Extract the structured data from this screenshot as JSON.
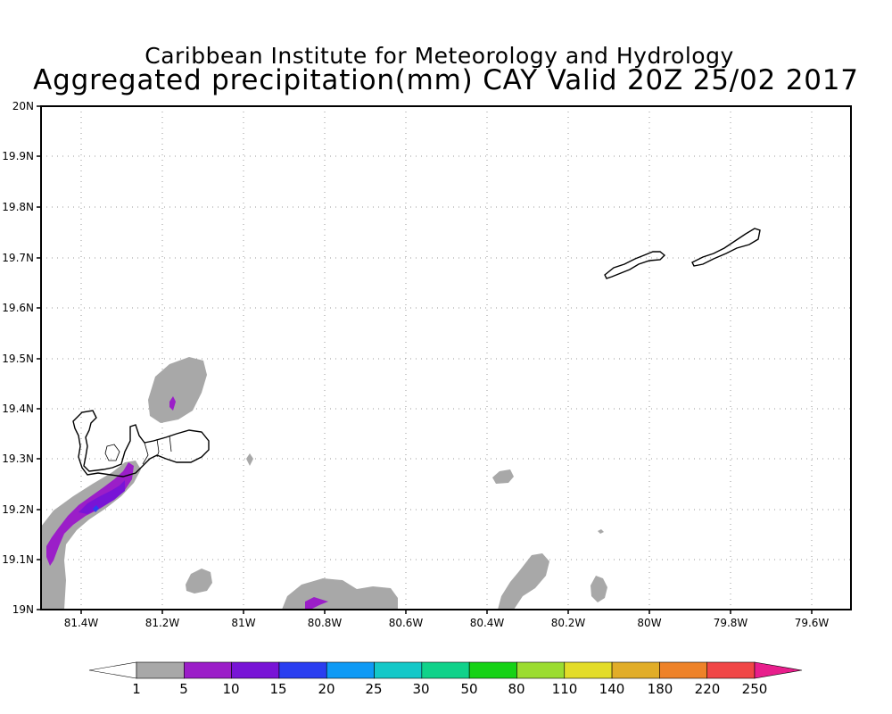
{
  "map": {
    "title": "Caribbean Institute for Meteorology and Hydrology",
    "subtitle": "Aggregated precipitation(mm) CAY Valid 20Z 25/02 2017",
    "lat_labels": [
      "20N",
      "19.9N",
      "19.8N",
      "19.7N",
      "19.6N",
      "19.5N",
      "19.4N",
      "19.3N",
      "19.2N",
      "19.1N",
      "19N"
    ],
    "lon_labels": [
      "81.4W",
      "81.2W",
      "81W",
      "80.8W",
      "80.6W",
      "80.4W",
      "80.2W",
      "80W",
      "79.8W",
      "79.6W"
    ],
    "colors": {
      "land_outline": "#000000",
      "grid": "#9a9a9a"
    }
  },
  "legend": {
    "labels": [
      "1",
      "5",
      "10",
      "15",
      "20",
      "25",
      "30",
      "50",
      "80",
      "110",
      "140",
      "180",
      "220",
      "250"
    ],
    "colors": [
      "#a8a8a8",
      "#9b1ec8",
      "#7814d6",
      "#2a3ef0",
      "#0f9af5",
      "#14c8c8",
      "#10d28a",
      "#16d216",
      "#9bdc30",
      "#e3dc28",
      "#e1ad28",
      "#ee8228",
      "#f04646",
      "#e81e8c"
    ]
  }
}
